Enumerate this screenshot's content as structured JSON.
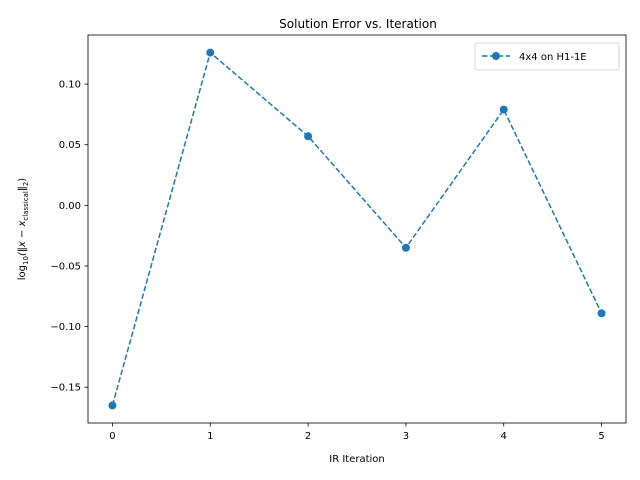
{
  "chart_data": {
    "type": "line",
    "title": "Solution Error vs. Iteration",
    "xlabel": "IR Iteration",
    "ylabel": {
      "prefix": "log",
      "prefix_sub": "10",
      "open": "(‖x − x",
      "sub": "classical",
      "close": "‖",
      "close_sub": "2",
      "end": ")"
    },
    "x": [
      0,
      1,
      2,
      3,
      4,
      5
    ],
    "series": [
      {
        "name": "4x4 on H1-1E",
        "values": [
          -0.165,
          0.126,
          0.057,
          -0.035,
          0.079,
          -0.089
        ],
        "color": "#1f77b4",
        "linestyle": "dashed",
        "marker": "circle"
      }
    ],
    "xlim": [
      -0.25,
      5.25
    ],
    "ylim": [
      -0.1795,
      0.1405
    ],
    "xticks": [
      {
        "value": 0,
        "label": "0"
      },
      {
        "value": 1,
        "label": "1"
      },
      {
        "value": 2,
        "label": "2"
      },
      {
        "value": 3,
        "label": "3"
      },
      {
        "value": 4,
        "label": "4"
      },
      {
        "value": 5,
        "label": "5"
      }
    ],
    "yticks": [
      {
        "value": 0.1,
        "label": "0.10"
      },
      {
        "value": 0.05,
        "label": "0.05"
      },
      {
        "value": 0.0,
        "label": "0.00"
      },
      {
        "value": -0.05,
        "label": "−0.05"
      },
      {
        "value": -0.1,
        "label": "−0.10"
      },
      {
        "value": -0.15,
        "label": "−0.15"
      }
    ],
    "grid": false,
    "legend_position": "top-right"
  }
}
